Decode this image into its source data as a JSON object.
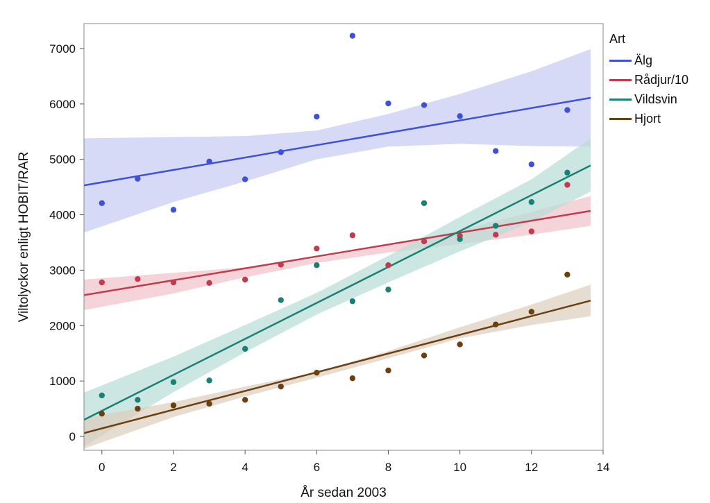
{
  "chart_data": {
    "type": "scatter",
    "xlabel": "År sedan 2003",
    "ylabel": "Viltolyckor enligt HOBIT/RAR",
    "xlim": [
      -0.5,
      14
    ],
    "ylim": [
      -250,
      7450
    ],
    "xticks": [
      0,
      2,
      4,
      6,
      8,
      10,
      12,
      14
    ],
    "yticks": [
      0,
      1000,
      2000,
      3000,
      4000,
      5000,
      6000,
      7000
    ],
    "grid": false,
    "legend_title": "Art",
    "legend_position": "right",
    "fit": "linear with confidence band",
    "series": [
      {
        "name": "Älg",
        "color": "#3f51d6",
        "band_color": "#c8ccf2",
        "x": [
          0,
          1,
          2,
          3,
          4,
          5,
          6,
          7,
          8,
          9,
          10,
          11,
          12,
          13
        ],
        "y": [
          4210,
          4650,
          4090,
          4960,
          4640,
          5130,
          5770,
          7230,
          6010,
          5980,
          5780,
          5150,
          4910,
          5890
        ],
        "fit_start": [
          -0.5,
          4530
        ],
        "fit_end": [
          13.65,
          6110
        ],
        "band_upper": [
          [
            -0.5,
            5380
          ],
          [
            4,
            5420
          ],
          [
            6,
            5520
          ],
          [
            8,
            5820
          ],
          [
            10,
            6180
          ],
          [
            12,
            6590
          ],
          [
            13.65,
            6990
          ]
        ],
        "band_lower": [
          [
            -0.5,
            3680
          ],
          [
            2,
            4230
          ],
          [
            4,
            4600
          ],
          [
            6,
            5000
          ],
          [
            8,
            5230
          ],
          [
            10,
            5280
          ],
          [
            12,
            5240
          ],
          [
            13.65,
            5230
          ]
        ]
      },
      {
        "name": "Rådjur/10",
        "color": "#c23a4e",
        "band_color": "#f1c4cb",
        "x": [
          0,
          1,
          2,
          3,
          4,
          5,
          6,
          7,
          8,
          9,
          10,
          11,
          12,
          13
        ],
        "y": [
          2780,
          2840,
          2780,
          2770,
          2830,
          3100,
          3390,
          3630,
          3090,
          3520,
          3620,
          3640,
          3700,
          4540
        ],
        "fit_start": [
          -0.5,
          2550
        ],
        "fit_end": [
          13.65,
          4070
        ],
        "band_upper": [
          [
            -0.5,
            2830
          ],
          [
            4,
            3050
          ],
          [
            6,
            3220
          ],
          [
            8,
            3450
          ],
          [
            10,
            3720
          ],
          [
            12,
            4050
          ],
          [
            13.65,
            4340
          ]
        ],
        "band_lower": [
          [
            -0.5,
            2280
          ],
          [
            2,
            2580
          ],
          [
            4,
            2870
          ],
          [
            6,
            3130
          ],
          [
            8,
            3320
          ],
          [
            10,
            3470
          ],
          [
            12,
            3640
          ],
          [
            13.65,
            3800
          ]
        ]
      },
      {
        "name": "Vildsvin",
        "color": "#1a7f74",
        "band_color": "#b8dcd6",
        "x": [
          0,
          1,
          2,
          3,
          4,
          5,
          6,
          7,
          8,
          9,
          10,
          11,
          12,
          13
        ],
        "y": [
          740,
          660,
          980,
          1010,
          1580,
          2460,
          3090,
          2440,
          2650,
          4210,
          3560,
          3800,
          4230,
          4760
        ],
        "fit_start": [
          -0.5,
          300
        ],
        "fit_end": [
          13.65,
          4890
        ],
        "band_upper": [
          [
            -0.5,
            790
          ],
          [
            2,
            1440
          ],
          [
            4,
            2010
          ],
          [
            6,
            2590
          ],
          [
            8,
            3260
          ],
          [
            10,
            3960
          ],
          [
            12,
            4640
          ],
          [
            13.65,
            5380
          ]
        ],
        "band_lower": [
          [
            -0.5,
            -180
          ],
          [
            2,
            800
          ],
          [
            4,
            1520
          ],
          [
            6,
            2200
          ],
          [
            8,
            2780
          ],
          [
            10,
            3340
          ],
          [
            12,
            3870
          ],
          [
            13.65,
            4420
          ]
        ]
      },
      {
        "name": "Hjort",
        "color": "#6b3f10",
        "band_color": "#dccfbe",
        "x": [
          0,
          1,
          2,
          3,
          4,
          5,
          6,
          7,
          8,
          9,
          10,
          11,
          12,
          13
        ],
        "y": [
          410,
          500,
          560,
          590,
          660,
          900,
          1150,
          1050,
          1190,
          1460,
          1660,
          2020,
          2250,
          2920
        ],
        "fit_start": [
          -0.5,
          60
        ],
        "fit_end": [
          13.65,
          2450
        ],
        "band_upper": [
          [
            -0.5,
            330
          ],
          [
            2,
            620
          ],
          [
            4,
            900
          ],
          [
            6,
            1160
          ],
          [
            8,
            1540
          ],
          [
            10,
            1970
          ],
          [
            12,
            2380
          ],
          [
            13.65,
            2740
          ]
        ],
        "band_lower": [
          [
            -0.5,
            -220
          ],
          [
            2,
            350
          ],
          [
            4,
            720
          ],
          [
            6,
            1060
          ],
          [
            8,
            1410
          ],
          [
            10,
            1770
          ],
          [
            12,
            2010
          ],
          [
            13.65,
            2170
          ]
        ]
      }
    ]
  }
}
